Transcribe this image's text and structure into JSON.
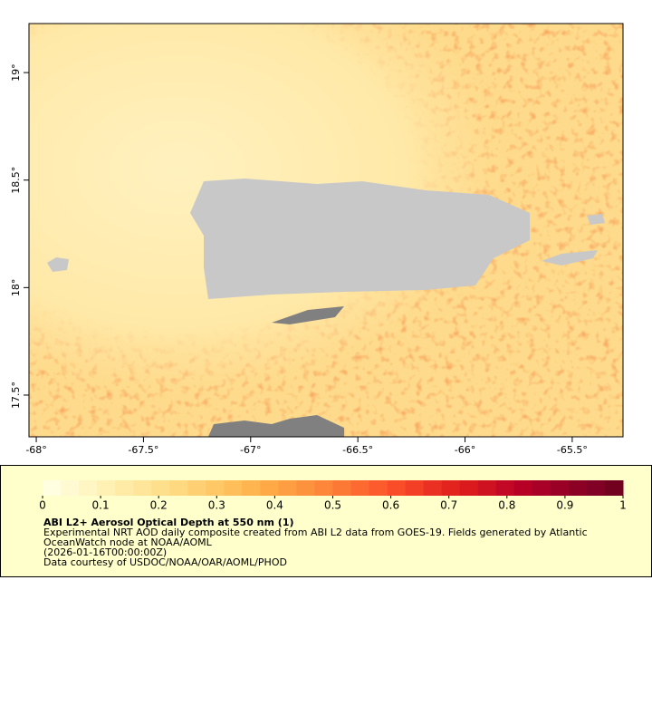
{
  "map": {
    "xlim": [
      -68.034,
      -65.263
    ],
    "ylim": [
      17.306,
      19.228
    ],
    "xticks": [
      {
        "value": -68,
        "label": "-68°"
      },
      {
        "value": -67.5,
        "label": "-67.5°"
      },
      {
        "value": -67,
        "label": "-67°"
      },
      {
        "value": -66.5,
        "label": "-66.5°"
      },
      {
        "value": -66,
        "label": "-66°"
      },
      {
        "value": -65.5,
        "label": "-65.5°"
      }
    ],
    "yticks": [
      {
        "value": 17.5,
        "label": "17.5°"
      },
      {
        "value": 18,
        "label": "18°"
      },
      {
        "value": 18.5,
        "label": "18.5°"
      },
      {
        "value": 19,
        "label": "19°"
      }
    ]
  },
  "colorbar": {
    "range": [
      0,
      1
    ],
    "ticks": [
      0,
      0.1,
      0.2,
      0.3,
      0.4,
      0.5,
      0.6,
      0.7,
      0.8,
      0.9,
      1
    ],
    "colors": [
      "#fffee0",
      "#fffad2",
      "#fff6c4",
      "#fff0b4",
      "#ffeba6",
      "#fee599",
      "#fedf8c",
      "#fed980",
      "#fed073",
      "#fec866",
      "#febf5a",
      "#feb44f",
      "#fea946",
      "#fd9e42",
      "#fd923e",
      "#fd863a",
      "#fc7835",
      "#fc6a31",
      "#fc5c2d",
      "#f94d2a",
      "#f23f26",
      "#ea3022",
      "#e3231e",
      "#da1a1d",
      "#ce1221",
      "#c20825",
      "#b70026",
      "#a80026",
      "#9a0026",
      "#8d0026",
      "#800026",
      "#72001f"
    ]
  },
  "caption": {
    "title": "ABI L2+ Aerosol Optical Depth at 550 nm (1)",
    "lines": [
      "Experimental NRT AOD daily composite created from ABI L2 data from GOES-19. Fields generated by Atlantic",
      "OceanWatch node at NOAA/AOML",
      "(2026-01-16T00:00:00Z)",
      "Data courtesy of USDOC/NOAA/OAR/AOML/PHOD"
    ]
  }
}
